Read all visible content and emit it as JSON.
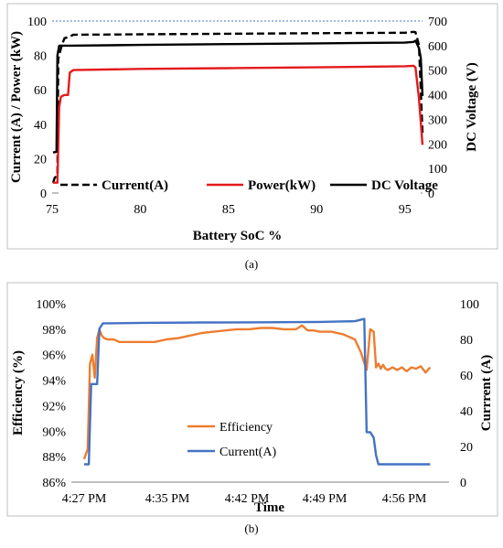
{
  "charts": [
    {
      "caption": "(a)",
      "chart_data": {
        "type": "line",
        "xlabel": "Battery SoC %",
        "ylabel": "Current (A) / Power (kW)",
        "y2label": "DC Voltage (V)",
        "xlim": [
          75,
          96
        ],
        "ylim": [
          0,
          100
        ],
        "y2lim": [
          0,
          700
        ],
        "xticks": [
          "75",
          "80",
          "85",
          "90",
          "95"
        ],
        "yticks": [
          "0",
          "20",
          "40",
          "60",
          "80",
          "100"
        ],
        "y2ticks": [
          "0",
          "100",
          "200",
          "300",
          "400",
          "500",
          "600",
          "700"
        ],
        "legend_position": "bottom-inside",
        "series": [
          {
            "name": "Current(A)",
            "axis": "left",
            "style": "dashed",
            "color": "#000000",
            "x": [
              75.05,
              75.15,
              75.3,
              75.35,
              75.55,
              75.7,
              76.0,
              76.2,
              80,
              85,
              90,
              95,
              95.5,
              95.6,
              95.8,
              96.0
            ],
            "y": [
              6,
              9,
              10,
              78,
              86,
              90,
              91,
              92,
              92.3,
              92.6,
              92.9,
              93.2,
              93.7,
              93.5,
              86,
              35
            ]
          },
          {
            "name": "Power(kW)",
            "axis": "left",
            "style": "solid",
            "color": "#e41a1c",
            "x": [
              75.05,
              75.15,
              75.3,
              75.4,
              75.5,
              75.7,
              75.9,
              76.0,
              76.2,
              80,
              85,
              90,
              95,
              95.5,
              95.6,
              95.8,
              96.0
            ],
            "y": [
              6,
              6,
              6,
              50,
              56,
              57,
              57,
              70,
              71.5,
              72.2,
              72.6,
              73.1,
              73.7,
              74,
              73,
              55,
              28
            ]
          },
          {
            "name": "DC Voltage",
            "axis": "right",
            "style": "solid",
            "color": "#000000",
            "x": [
              75.05,
              75.25,
              75.3,
              75.4,
              76.0,
              80,
              85,
              90,
              95,
              95.5,
              95.6,
              95.8,
              95.9,
              96.0
            ],
            "y": [
              165,
              168,
              560,
              600,
              600,
              603,
              606,
              609,
              612,
              615,
              620,
              590,
              550,
              395
            ]
          }
        ],
        "reference_line": {
          "axis": "left",
          "y": 100,
          "color": "#4472c4",
          "style": "dotted"
        }
      }
    },
    {
      "caption": "(b)",
      "chart_data": {
        "type": "line",
        "xlabel": "Time",
        "ylabel": "Efficiency (%)",
        "y2label": "Currrent (A)",
        "xticks": [
          "4:27 PM",
          "4:35 PM",
          "4:42 PM",
          "4:49 PM",
          "4:56 PM"
        ],
        "xlim_minutes": [
          0,
          31
        ],
        "ylim": [
          86,
          100
        ],
        "y2lim": [
          0,
          100
        ],
        "yticks": [
          "86%",
          "88%",
          "90%",
          "92%",
          "94%",
          "96%",
          "98%",
          "100%"
        ],
        "y2ticks": [
          "0",
          "20",
          "40",
          "60",
          "80",
          "100"
        ],
        "legend_position": "center-left",
        "series": [
          {
            "name": "Efficiency",
            "axis": "left",
            "color": "#ed7d31",
            "x": [
              0,
              0.3,
              0.5,
              0.7,
              0.9,
              1.1,
              1.3,
              1.5,
              1.7,
              2.0,
              2.5,
              3,
              4,
              5,
              6,
              7,
              8,
              9,
              10,
              11,
              12,
              13,
              14,
              15,
              16,
              17,
              18,
              18.5,
              19,
              19.5,
              20,
              21,
              22,
              23,
              23.5,
              24.0,
              24.3,
              24.6,
              24.8,
              25.0,
              25.2,
              25.4,
              25.6,
              25.8,
              26.2,
              26.6,
              27,
              27.4,
              27.8,
              28.2,
              28.6,
              29.0,
              29.4
            ],
            "y": [
              87.8,
              88.6,
              95.3,
              96.0,
              94.2,
              97.3,
              98.0,
              97.5,
              97.3,
              97.2,
              97.2,
              97.0,
              97.0,
              97.0,
              97.0,
              97.2,
              97.3,
              97.5,
              97.7,
              97.8,
              97.9,
              98.0,
              98.0,
              98.1,
              98.1,
              98.0,
              98.0,
              98.3,
              97.9,
              97.9,
              97.8,
              97.8,
              97.6,
              97.2,
              96.2,
              94.8,
              98.0,
              97.8,
              95.0,
              95.3,
              94.9,
              95.2,
              94.9,
              94.8,
              95.0,
              94.8,
              95.0,
              94.7,
              95.0,
              94.9,
              95.1,
              94.6,
              95.0
            ]
          },
          {
            "name": "Current(A)",
            "axis": "right",
            "color": "#4472c4",
            "x": [
              0,
              0.4,
              0.6,
              0.8,
              1.1,
              1.3,
              1.6,
              2.0,
              5,
              10,
              15,
              20,
              23,
              23.8,
              24.0,
              24.3,
              24.6,
              24.8,
              25.0,
              29.4
            ],
            "y": [
              10,
              10,
              55,
              55,
              55,
              86,
              89,
              89,
              89.3,
              89.5,
              89.6,
              89.8,
              90.2,
              91.5,
              28,
              28,
              25,
              15,
              10,
              10
            ]
          }
        ]
      }
    }
  ]
}
